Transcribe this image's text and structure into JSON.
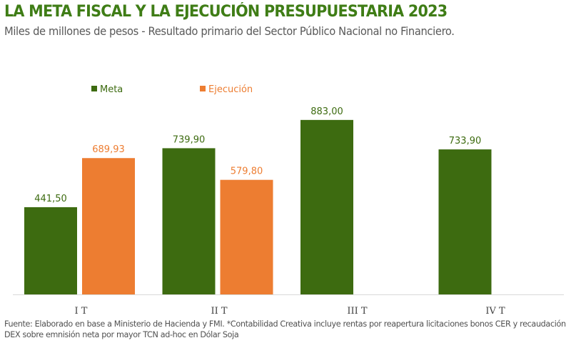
{
  "title": "LA META FISCAL Y LA EJECUCIÓN PRESUPUESTARIA 2023",
  "subtitle": "Miles de millones de pesos - Resultado primario del Sector Público Nacional no Financiero.",
  "footer": "Fuente: Elaborado en base a Ministerio de Hacienda y FMI. *Contabilidad Creativa incluye rentas por reapertura licitaciones bonos CER y recaudación DEX sobre emnisión neta por mayor TCN ad-hoc en Dólar Soja",
  "chart_data": {
    "type": "bar",
    "categories": [
      "I T",
      "II T",
      "III T",
      "IV T"
    ],
    "series": [
      {
        "name": "Meta",
        "color": "#3d6b10",
        "values": [
          441.5,
          739.9,
          883.0,
          733.9
        ],
        "labels": [
          "441,50",
          "739,90",
          "883,00",
          "733,90"
        ],
        "label_color": "#3d6b10"
      },
      {
        "name": "Ejecución",
        "color": "#ed7d31",
        "values": [
          689.93,
          579.8,
          null,
          null
        ],
        "labels": [
          "689,93",
          "579,80",
          "",
          ""
        ],
        "label_color": "#ed7d31"
      }
    ],
    "ylim": [
      0,
      1000
    ],
    "grid": false,
    "legend": "top-left",
    "data_labels": true
  }
}
